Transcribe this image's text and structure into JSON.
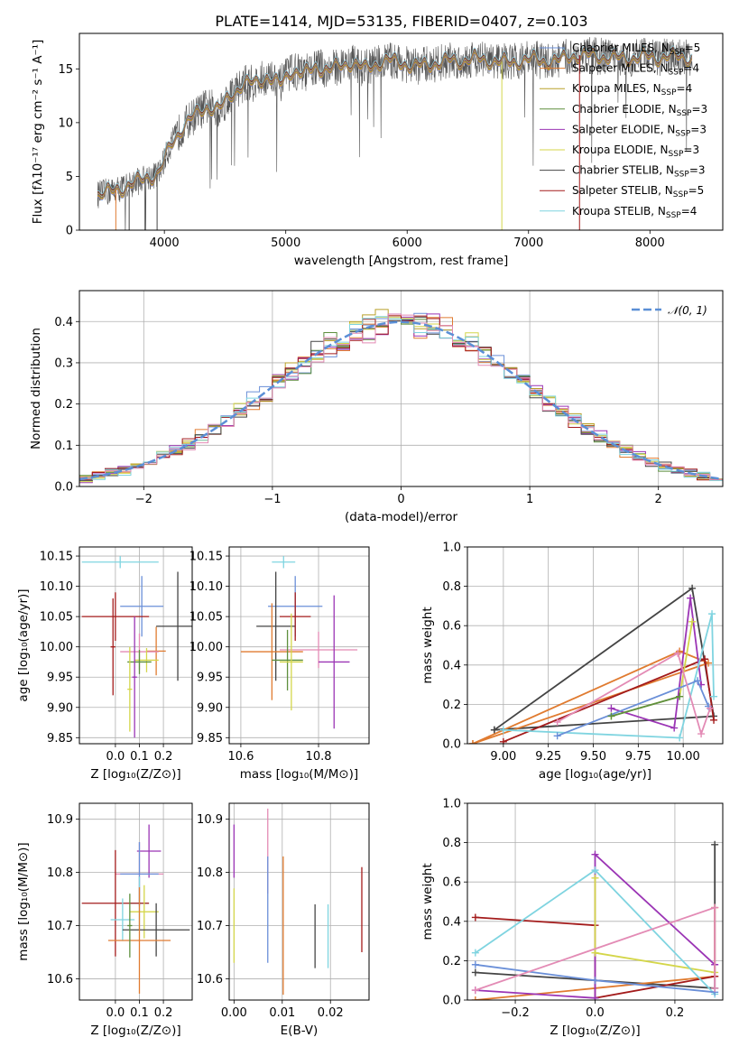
{
  "figure": {
    "title": "PLATE=1414, MJD=53135, FIBERID=0407, z=0.103"
  },
  "chart_data": [
    {
      "id": "spectrum",
      "type": "line",
      "xlabel": "wavelength [Angstrom, rest frame]",
      "ylabel": "Flux [fλ10⁻¹⁷ erg cm⁻² s⁻¹ A⁻¹]",
      "xlim": [
        3300,
        8600
      ],
      "ylim": [
        0,
        18.3
      ],
      "xticks": [
        4000,
        5000,
        6000,
        7000,
        8000
      ],
      "yticks": [
        0,
        5,
        10,
        15
      ],
      "legend_position": "right",
      "data_wavelength": [
        3450,
        3550,
        3650,
        3750,
        3850,
        3950,
        4050,
        4150,
        4250,
        4350,
        4450,
        4550,
        4650,
        4750,
        4850,
        4950,
        5050,
        5150,
        5250,
        5350,
        5450,
        5550,
        5650,
        5750,
        5850,
        5950,
        6050,
        6150,
        6250,
        6350,
        6450,
        6550,
        6650,
        6750,
        6850,
        6950,
        7050,
        7150,
        7250,
        7350,
        7450,
        7550,
        7650,
        7750,
        7850,
        7950,
        8050,
        8150,
        8250,
        8350
      ],
      "data_flux": [
        3.3,
        3.6,
        3.9,
        4.4,
        4.9,
        5.2,
        7.9,
        9.6,
        10.7,
        11.5,
        11.2,
        12.6,
        13.6,
        13.7,
        14.3,
        13.5,
        14.9,
        14.5,
        15.2,
        14.9,
        15.3,
        15.6,
        15.0,
        15.5,
        15.8,
        15.6,
        15.2,
        15.4,
        15.5,
        15.8,
        15.7,
        16.0,
        15.8,
        15.7,
        15.6,
        15.8,
        15.9,
        15.7,
        15.8,
        16.2,
        16.3,
        16.2,
        16.1,
        16.0,
        16.0,
        16.2,
        16.0,
        16.2,
        16.1,
        16.0
      ],
      "series": [
        {
          "name": "Chabrier MILES, N_SSP=5",
          "color": "#6a8fd8",
          "label_html": "Chabrier MILES, N<tspan font-size='9px' dy='3'>SSP</tspan><tspan dy='-3'>=5</tspan>"
        },
        {
          "name": "Salpeter MILES, N_SSP=4",
          "color": "#e07b30",
          "label_html": "Salpeter MILES, N<tspan font-size='9px' dy='3'>SSP</tspan><tspan dy='-3'>=4</tspan>"
        },
        {
          "name": "Kroupa MILES, N_SSP=4",
          "color": "#b8a02a",
          "label_html": "Kroupa MILES, N<tspan font-size='9px' dy='3'>SSP</tspan><tspan dy='-3'>=4</tspan>"
        },
        {
          "name": "Chabrier ELODIE, N_SSP=3",
          "color": "#5e8f3e",
          "label_html": "Chabrier ELODIE, N<tspan font-size='9px' dy='3'>SSP</tspan><tspan dy='-3'>=3</tspan>"
        },
        {
          "name": "Salpeter ELODIE, N_SSP=3",
          "color": "#9b35b5",
          "label_html": "Salpeter ELODIE, N<tspan font-size='9px' dy='3'>SSP</tspan><tspan dy='-3'>=3</tspan>"
        },
        {
          "name": "Kroupa ELODIE, N_SSP=3",
          "color": "#d4d64a",
          "label_html": "Kroupa ELODIE, N<tspan font-size='9px' dy='3'>SSP</tspan><tspan dy='-3'>=3</tspan>"
        },
        {
          "name": "Chabrier STELIB, N_SSP=3",
          "color": "#444444",
          "label_html": "Chabrier STELIB, N<tspan font-size='9px' dy='3'>SSP</tspan><tspan dy='-3'>=3</tspan>"
        },
        {
          "name": "Salpeter STELIB, N_SSP=5",
          "color": "#a31b1b",
          "label_html": "Salpeter STELIB, N<tspan font-size='9px' dy='3'>SSP</tspan><tspan dy='-3'>=5</tspan>"
        },
        {
          "name": "Kroupa STELIB, N_SSP=4",
          "color": "#7fd4e0",
          "label_html": "Kroupa STELIB, N<tspan font-size='9px' dy='3'>SSP</tspan><tspan dy='-3'>=4</tspan>"
        }
      ]
    },
    {
      "id": "residuals",
      "type": "line",
      "xlabel": "(data-model)/error",
      "ylabel": "Normed distribution",
      "xlim": [
        -2.5,
        2.5
      ],
      "ylim": [
        0,
        0.475
      ],
      "xticks": [
        -2,
        -1,
        0,
        1,
        2
      ],
      "yticks": [
        0.0,
        0.1,
        0.2,
        0.3,
        0.4
      ],
      "grid": true,
      "legend": "𝒩(0, 1)",
      "legend_position": "top-right",
      "gaussian_mean": 0,
      "gaussian_sigma": 1,
      "bin_width": 0.1,
      "histogram_colors": [
        "#6a8fd8",
        "#e07b30",
        "#b8a02a",
        "#5e8f3e",
        "#9b35b5",
        "#d4d64a",
        "#444444",
        "#a31b1b",
        "#7fd4e0",
        "#e38bb5"
      ]
    },
    {
      "id": "age-vs-Z",
      "type": "scatter",
      "xlabel": "Z [log₁₀(Z/Z⊙)]",
      "ylabel": "age  [log₁₀(age/yr)]",
      "xlim": [
        -0.15,
        0.32
      ],
      "ylim": [
        9.84,
        10.165
      ],
      "xticks": [
        0.0,
        0.1,
        0.2
      ],
      "yticks": [
        9.85,
        9.9,
        9.95,
        10.0,
        10.05,
        10.1,
        10.15
      ],
      "grid": true,
      "points": [
        {
          "x": 0.02,
          "y": 10.14,
          "xerr": 0.16,
          "yerr": 0.01,
          "color": "#7fd4e0"
        },
        {
          "x": 0.11,
          "y": 10.067,
          "xerr": 0.09,
          "yerr": 0.05,
          "color": "#6a8fd8"
        },
        {
          "x": 0.26,
          "y": 10.034,
          "xerr": 0.09,
          "yerr": 0.09,
          "color": "#444444"
        },
        {
          "x": 0.0,
          "y": 10.05,
          "xerr": 0.14,
          "yerr": 0.04,
          "color": "#a31b1b"
        },
        {
          "x": 0.17,
          "y": 9.993,
          "xerr": 0.04,
          "yerr": 0.04,
          "color": "#e07b30"
        },
        {
          "x": 0.1,
          "y": 9.992,
          "xerr": 0.08,
          "yerr": 0.03,
          "color": "#e38bb5"
        },
        {
          "x": 0.13,
          "y": 9.978,
          "xerr": 0.05,
          "yerr": 0.02,
          "color": "#d4d64a"
        },
        {
          "x": 0.1,
          "y": 9.975,
          "xerr": 0.05,
          "yerr": 0.02,
          "color": "#5e8f3e"
        },
        {
          "x": -0.01,
          "y": 10.0,
          "xerr": 0.01,
          "yerr": 0.08,
          "color": "#a31b1b"
        },
        {
          "x": 0.08,
          "y": 9.95,
          "xerr": 0.01,
          "yerr": 0.1,
          "color": "#9b35b5"
        },
        {
          "x": 0.06,
          "y": 9.93,
          "xerr": 0.01,
          "yerr": 0.07,
          "color": "#d4d64a"
        }
      ]
    },
    {
      "id": "age-vs-mass",
      "type": "scatter",
      "xlabel": "mass [log₁₀(M/M⊙)]",
      "ylabel": "",
      "xlim": [
        10.57,
        10.93
      ],
      "ylim": [
        9.84,
        10.165
      ],
      "xticks": [
        10.6,
        10.8
      ],
      "yticks": [
        9.85,
        9.9,
        9.95,
        10.0,
        10.05,
        10.1,
        10.15
      ],
      "grid": true,
      "points": [
        {
          "x": 10.71,
          "y": 10.14,
          "xerr": 0.03,
          "yerr": 0.01,
          "color": "#7fd4e0"
        },
        {
          "x": 10.74,
          "y": 10.067,
          "xerr": 0.07,
          "yerr": 0.05,
          "color": "#6a8fd8"
        },
        {
          "x": 10.69,
          "y": 10.034,
          "xerr": 0.05,
          "yerr": 0.09,
          "color": "#444444"
        },
        {
          "x": 10.74,
          "y": 10.05,
          "xerr": 0.04,
          "yerr": 0.04,
          "color": "#a31b1b"
        },
        {
          "x": 10.68,
          "y": 9.992,
          "xerr": 0.08,
          "yerr": 0.08,
          "color": "#e07b30"
        },
        {
          "x": 10.8,
          "y": 9.995,
          "xerr": 0.1,
          "yerr": 0.03,
          "color": "#e38bb5"
        },
        {
          "x": 10.72,
          "y": 9.978,
          "xerr": 0.04,
          "yerr": 0.05,
          "color": "#5e8f3e"
        },
        {
          "x": 10.73,
          "y": 9.975,
          "xerr": 0.03,
          "yerr": 0.08,
          "color": "#d4d64a"
        },
        {
          "x": 10.84,
          "y": 9.975,
          "xerr": 0.04,
          "yerr": 0.11,
          "color": "#9b35b5"
        }
      ]
    },
    {
      "id": "weight-vs-age",
      "type": "line",
      "xlabel": "age  [log₁₀(age/yr)]",
      "ylabel": "mass weight",
      "xlim": [
        8.8,
        10.22
      ],
      "ylim": [
        0,
        1.0
      ],
      "xticks": [
        9.0,
        9.25,
        9.5,
        9.75,
        10.0
      ],
      "xticklabels": [
        "9.00",
        "9.25",
        "9.50",
        "9.75",
        "10.00"
      ],
      "yticks": [
        0.0,
        0.2,
        0.4,
        0.6,
        0.8,
        1.0
      ],
      "grid": true,
      "series": [
        {
          "color": "#444444",
          "points": [
            [
              8.95,
              0.07
            ],
            [
              10.05,
              0.79
            ],
            [
              10.17,
              0.14
            ],
            [
              8.95,
              0.07
            ]
          ]
        },
        {
          "color": "#e07b30",
          "points": [
            [
              8.83,
              0.0
            ],
            [
              9.98,
              0.47
            ],
            [
              10.14,
              0.41
            ],
            [
              8.83,
              0.0
            ]
          ]
        },
        {
          "color": "#a31b1b",
          "points": [
            [
              9.0,
              0.01
            ],
            [
              10.12,
              0.43
            ],
            [
              10.17,
              0.12
            ]
          ]
        },
        {
          "color": "#9b35b5",
          "points": [
            [
              9.6,
              0.18
            ],
            [
              9.95,
              0.08
            ],
            [
              10.04,
              0.74
            ],
            [
              10.1,
              0.3
            ]
          ]
        },
        {
          "color": "#d4d64a",
          "points": [
            [
              9.6,
              0.14
            ],
            [
              9.98,
              0.24
            ],
            [
              10.05,
              0.62
            ]
          ]
        },
        {
          "color": "#7fd4e0",
          "points": [
            [
              9.0,
              0.07
            ],
            [
              9.98,
              0.03
            ],
            [
              10.16,
              0.66
            ],
            [
              10.17,
              0.24
            ]
          ]
        },
        {
          "color": "#6a8fd8",
          "points": [
            [
              9.3,
              0.04
            ],
            [
              10.08,
              0.32
            ],
            [
              10.14,
              0.19
            ]
          ]
        },
        {
          "color": "#e38bb5",
          "points": [
            [
              9.3,
              0.11
            ],
            [
              9.97,
              0.46
            ],
            [
              10.1,
              0.05
            ],
            [
              10.15,
              0.18
            ]
          ]
        },
        {
          "color": "#5e8f3e",
          "points": [
            [
              9.6,
              0.14
            ],
            [
              9.98,
              0.24
            ]
          ]
        }
      ]
    },
    {
      "id": "mass-vs-Z",
      "type": "scatter",
      "xlabel": "Z [log₁₀(Z/Z⊙)]",
      "ylabel": "mass [log₁₀(M/M⊙)]",
      "xlim": [
        -0.15,
        0.32
      ],
      "ylim": [
        10.56,
        10.93
      ],
      "xticks": [
        0.0,
        0.1,
        0.2
      ],
      "yticks": [
        10.6,
        10.7,
        10.8,
        10.9
      ],
      "grid": true,
      "points": [
        {
          "x": 0.14,
          "y": 10.84,
          "xerr": 0.05,
          "yerr": 0.05,
          "color": "#9b35b5"
        },
        {
          "x": 0.1,
          "y": 10.797,
          "xerr": 0.1,
          "yerr": 0.06,
          "color": "#e38bb5"
        },
        {
          "x": 0.1,
          "y": 10.797,
          "xerr": 0.08,
          "yerr": 0.06,
          "color": "#6a8fd8"
        },
        {
          "x": 0.1,
          "y": 10.742,
          "xerr": 0.04,
          "yerr": 0.05,
          "color": "#7fd4e0"
        },
        {
          "x": 0.0,
          "y": 10.742,
          "xerr": 0.14,
          "yerr": 0.1,
          "color": "#a31b1b"
        },
        {
          "x": 0.12,
          "y": 10.726,
          "xerr": 0.06,
          "yerr": 0.05,
          "color": "#d4d64a"
        },
        {
          "x": 0.03,
          "y": 10.711,
          "xerr": 0.05,
          "yerr": 0.04,
          "color": "#7fd4e0"
        },
        {
          "x": 0.17,
          "y": 10.692,
          "xerr": 0.14,
          "yerr": 0.05,
          "color": "#444444"
        },
        {
          "x": 0.1,
          "y": 10.672,
          "xerr": 0.13,
          "yerr": 0.1,
          "color": "#e07b30"
        },
        {
          "x": 0.06,
          "y": 10.7,
          "xerr": 0.01,
          "yerr": 0.06,
          "color": "#5e8f3e"
        }
      ]
    },
    {
      "id": "mass-vs-EBV",
      "type": "scatter",
      "xlabel": "E(B-V)",
      "ylabel": "",
      "xlim": [
        -0.001,
        0.028
      ],
      "ylim": [
        10.56,
        10.93
      ],
      "xticks": [
        0.0,
        0.01,
        0.02
      ],
      "xticklabels": [
        "0.00",
        "0.01",
        "0.02"
      ],
      "yticks": [
        10.6,
        10.7,
        10.8,
        10.9
      ],
      "grid": true,
      "points": [
        {
          "x": 0.0,
          "y": 10.84,
          "yerr": 0.05,
          "color": "#9b35b5"
        },
        {
          "x": 0.0,
          "y": 10.7,
          "yerr": 0.07,
          "color": "#d4d64a"
        },
        {
          "x": 0.007,
          "y": 10.84,
          "yerr": 0.08,
          "color": "#e38bb5"
        },
        {
          "x": 0.007,
          "y": 10.73,
          "yerr": 0.1,
          "color": "#6a8fd8"
        },
        {
          "x": 0.0102,
          "y": 10.7,
          "yerr": 0.13,
          "color": "#e07b30"
        },
        {
          "x": 0.0168,
          "y": 10.68,
          "yerr": 0.06,
          "color": "#444444"
        },
        {
          "x": 0.0195,
          "y": 10.68,
          "yerr": 0.06,
          "color": "#7fd4e0"
        },
        {
          "x": 0.0265,
          "y": 10.73,
          "yerr": 0.08,
          "color": "#a31b1b"
        }
      ]
    },
    {
      "id": "weight-vs-Z",
      "type": "line",
      "xlabel": "Z [log₁₀(Z/Z⊙)]",
      "ylabel": "mass weight",
      "xlim": [
        -0.32,
        0.32
      ],
      "ylim": [
        0,
        1.0
      ],
      "xticks": [
        -0.2,
        0.0,
        0.2
      ],
      "xticklabels": [
        "−0.2",
        "0.0",
        "0.2"
      ],
      "yticks": [
        0.0,
        0.2,
        0.4,
        0.6,
        0.8,
        1.0
      ],
      "grid": true,
      "series": [
        {
          "color": "#444444",
          "points": [
            [
              -0.3,
              0.14
            ],
            [
              0.0,
              0.1
            ],
            [
              0.3,
              0.06
            ],
            [
              0.3,
              0.79
            ]
          ]
        },
        {
          "color": "#e07b30",
          "points": [
            [
              -0.3,
              0.0
            ],
            [
              0.3,
              0.12
            ],
            [
              0.3,
              0.47
            ]
          ]
        },
        {
          "color": "#a31b1b",
          "points": [
            [
              -0.3,
              0.42
            ],
            [
              0.0,
              0.38
            ],
            [
              0.0,
              0.01
            ],
            [
              0.3,
              0.12
            ]
          ]
        },
        {
          "color": "#9b35b5",
          "points": [
            [
              -0.3,
              0.05
            ],
            [
              0.0,
              0.01
            ],
            [
              0.0,
              0.74
            ],
            [
              0.3,
              0.18
            ]
          ]
        },
        {
          "color": "#d4d64a",
          "points": [
            [
              0.0,
              0.62
            ],
            [
              0.0,
              0.24
            ],
            [
              0.3,
              0.14
            ]
          ]
        },
        {
          "color": "#7fd4e0",
          "points": [
            [
              -0.3,
              0.24
            ],
            [
              0.0,
              0.66
            ],
            [
              0.3,
              0.03
            ]
          ]
        },
        {
          "color": "#6a8fd8",
          "points": [
            [
              -0.3,
              0.18
            ],
            [
              0.0,
              0.1
            ],
            [
              0.3,
              0.04
            ]
          ]
        },
        {
          "color": "#e38bb5",
          "points": [
            [
              -0.3,
              0.05
            ],
            [
              0.3,
              0.47
            ],
            [
              0.3,
              0.06
            ]
          ]
        }
      ]
    }
  ]
}
